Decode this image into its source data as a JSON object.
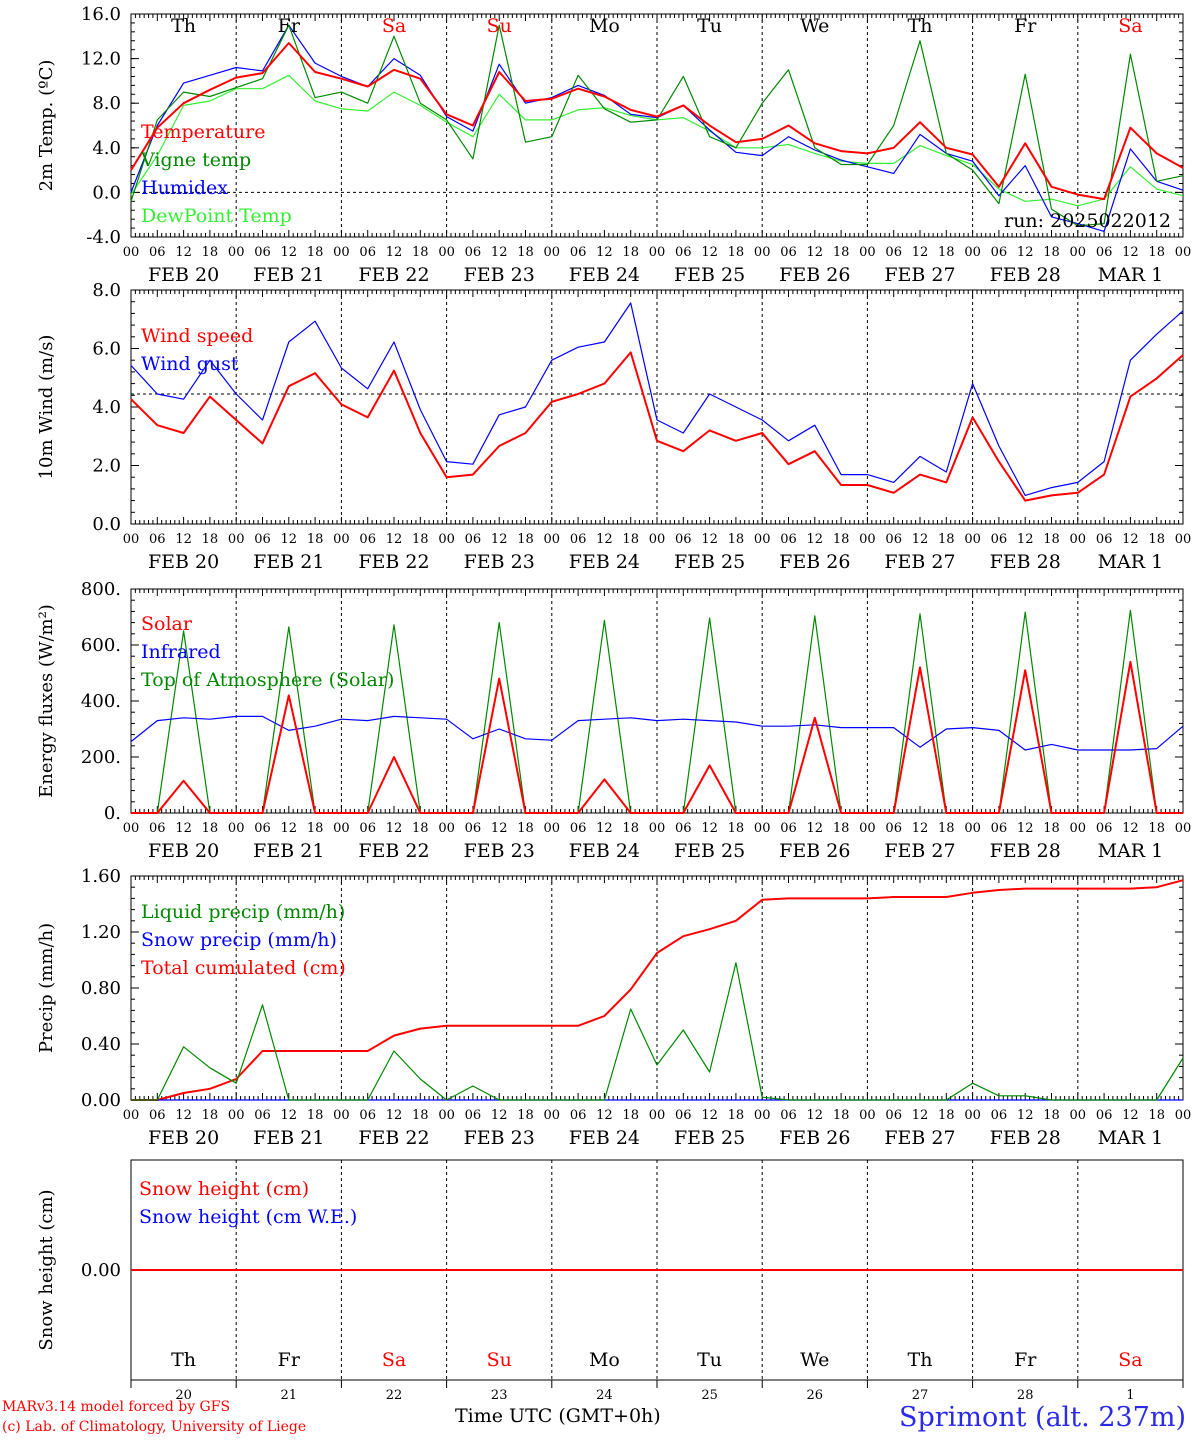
{
  "footer": {
    "credit_line1": "MARv3.14 model forced by GFS",
    "credit_line2": "(c) Lab. of Climatology, University of Liege",
    "time_label": "Time UTC (GMT+0h)",
    "station": "Sprimont (alt. 237m)"
  },
  "colors": {
    "red": "#ff0000",
    "green": "#008800",
    "blue": "#0000ff",
    "lightgreen": "#33ee33",
    "black": "#000000",
    "title_blue": "#2a2ae8"
  },
  "chart_data": [
    {
      "type": "line",
      "ylabel": "2m Temp. (ºC)",
      "ylim": [
        -4,
        16
      ],
      "yticks": [
        "-4.0",
        "0.0",
        "4.0",
        "8.0",
        "12.0",
        "16.0"
      ],
      "refline": 0,
      "run_label": "run: 2025022012",
      "day_labels": [
        "Th",
        "Fr",
        "Sa",
        "Su",
        "Mo",
        "Tu",
        "We",
        "Th",
        "Fr",
        "Sa"
      ],
      "date_labels": [
        "FEB 20",
        "FEB 21",
        "FEB 22",
        "FEB 23",
        "FEB 24",
        "FEB 25",
        "FEB 26",
        "FEB 27",
        "FEB 28",
        "MAR  1"
      ],
      "x_hours_utc": [
        0,
        6,
        12,
        18,
        24,
        30,
        36,
        42,
        48,
        54,
        60,
        66,
        72,
        78,
        84,
        90,
        96,
        102,
        108,
        114,
        120,
        126,
        132,
        138,
        144,
        150,
        156,
        162,
        168,
        174,
        180,
        186,
        192,
        198,
        204,
        210,
        216,
        222,
        228,
        234,
        240
      ],
      "series": [
        {
          "name": "Temperature",
          "color": "red",
          "values": [
            2.0,
            5.8,
            8.0,
            9.2,
            10.3,
            10.7,
            13.4,
            10.8,
            10.2,
            9.5,
            11.0,
            10.2,
            7.0,
            6.0,
            10.8,
            8.2,
            8.4,
            9.3,
            8.6,
            7.4,
            6.8,
            7.8,
            6.0,
            4.5,
            4.8,
            6.0,
            4.4,
            3.7,
            3.5,
            4.0,
            6.3,
            4.0,
            3.4,
            0.5,
            4.4,
            0.5,
            -0.2,
            -0.6,
            5.8,
            3.5,
            2.2
          ]
        },
        {
          "name": "Vigne temp",
          "color": "green",
          "values": [
            -0.8,
            6.5,
            9.0,
            8.6,
            9.4,
            10.2,
            15.0,
            8.5,
            9.0,
            8.0,
            14.0,
            8.0,
            6.5,
            3.0,
            15.0,
            4.5,
            5.0,
            10.5,
            7.5,
            6.3,
            6.5,
            10.4,
            5.0,
            4.0,
            8.0,
            11.0,
            4.0,
            2.5,
            2.5,
            6.0,
            13.6,
            3.5,
            2.0,
            -1.0,
            10.6,
            -1.5,
            -3.0,
            -2.8,
            12.4,
            1.0,
            1.5
          ]
        },
        {
          "name": "Humidex",
          "color": "blue",
          "values": [
            0.0,
            6.0,
            9.8,
            10.5,
            11.2,
            10.9,
            15.0,
            11.6,
            10.4,
            9.5,
            12.0,
            10.5,
            6.8,
            5.5,
            11.5,
            8.0,
            8.5,
            9.6,
            8.7,
            7.0,
            6.7,
            7.8,
            5.6,
            3.6,
            3.3,
            5.0,
            3.8,
            2.9,
            2.3,
            1.7,
            5.2,
            3.5,
            2.8,
            -0.3,
            2.4,
            -2.2,
            -2.8,
            -3.5,
            3.9,
            1.0,
            0.2
          ]
        },
        {
          "name": "DewPoint Temp",
          "color": "lightgreen",
          "values": [
            -0.2,
            3.3,
            7.8,
            8.2,
            9.3,
            9.3,
            10.5,
            8.2,
            7.5,
            7.3,
            9.0,
            7.8,
            6.3,
            5.0,
            8.8,
            6.5,
            6.5,
            7.4,
            7.6,
            6.9,
            6.5,
            6.7,
            5.5,
            4.0,
            4.0,
            4.3,
            3.5,
            2.8,
            2.6,
            2.6,
            4.2,
            3.3,
            2.5,
            0.3,
            -0.8,
            -0.6,
            -1.2,
            -0.6,
            2.3,
            0.3,
            -0.3
          ]
        }
      ]
    },
    {
      "type": "line",
      "ylabel": "10m Wind (m/s)",
      "ylim": [
        0,
        9
      ],
      "yticks": [
        "0.0",
        "2.0",
        "4.0",
        "6.0",
        "8.0"
      ],
      "refline": 5,
      "x_hours_utc": [
        0,
        6,
        12,
        18,
        24,
        30,
        36,
        42,
        48,
        54,
        60,
        66,
        72,
        78,
        84,
        90,
        96,
        102,
        108,
        114,
        120,
        126,
        132,
        138,
        144,
        150,
        156,
        162,
        168,
        174,
        180,
        186,
        192,
        198,
        204,
        210,
        216,
        222,
        228,
        234,
        240
      ],
      "series": [
        {
          "name": "Wind speed",
          "color": "red",
          "values": [
            4.8,
            3.8,
            3.5,
            4.9,
            4.0,
            3.1,
            5.3,
            5.8,
            4.6,
            4.1,
            5.9,
            3.5,
            1.8,
            1.9,
            3.0,
            3.5,
            4.7,
            5.0,
            5.4,
            6.6,
            3.2,
            2.8,
            3.6,
            3.2,
            3.5,
            2.3,
            2.8,
            1.5,
            1.5,
            1.2,
            1.9,
            1.6,
            4.1,
            2.4,
            0.9,
            1.1,
            1.2,
            1.9,
            4.9,
            5.6,
            6.5
          ]
        },
        {
          "name": "Wind gust",
          "color": "blue",
          "values": [
            6.1,
            5.0,
            4.8,
            6.3,
            5.0,
            4.0,
            7.0,
            7.8,
            6.0,
            5.2,
            7.0,
            4.4,
            2.4,
            2.3,
            4.2,
            4.5,
            6.3,
            6.8,
            7.0,
            8.5,
            4.0,
            3.5,
            5.0,
            4.5,
            4.0,
            3.2,
            3.8,
            1.9,
            1.9,
            1.6,
            2.6,
            2.0,
            5.4,
            3.0,
            1.1,
            1.4,
            1.6,
            2.4,
            6.3,
            7.3,
            8.2
          ]
        }
      ]
    },
    {
      "type": "line",
      "ylabel": "Energy fluxes (W/m²)",
      "ylim": [
        0,
        800
      ],
      "yticks": [
        "0.",
        "200.",
        "400.",
        "600.",
        "800."
      ],
      "x_hours_utc": [
        0,
        6,
        12,
        18,
        24,
        30,
        36,
        42,
        48,
        54,
        60,
        66,
        72,
        78,
        84,
        90,
        96,
        102,
        108,
        114,
        120,
        126,
        132,
        138,
        144,
        150,
        156,
        162,
        168,
        174,
        180,
        186,
        192,
        198,
        204,
        210,
        216,
        222,
        228,
        234,
        240
      ],
      "series": [
        {
          "name": "Solar",
          "color": "red",
          "values": [
            0,
            0,
            115,
            0,
            0,
            0,
            420,
            0,
            0,
            0,
            200,
            0,
            0,
            0,
            480,
            0,
            0,
            0,
            120,
            0,
            0,
            0,
            170,
            0,
            0,
            0,
            340,
            0,
            0,
            0,
            520,
            0,
            0,
            0,
            510,
            0,
            0,
            0,
            540,
            0,
            0
          ]
        },
        {
          "name": "Infrared",
          "color": "blue",
          "values": [
            255,
            330,
            340,
            335,
            345,
            345,
            295,
            310,
            335,
            330,
            345,
            340,
            335,
            265,
            300,
            265,
            260,
            330,
            335,
            340,
            330,
            335,
            330,
            325,
            310,
            310,
            315,
            305,
            305,
            305,
            235,
            300,
            305,
            295,
            225,
            245,
            225,
            225,
            225,
            230,
            310
          ]
        },
        {
          "name": "Top of Atmosphere (Solar)",
          "color": "green",
          "values": [
            0,
            0,
            650,
            0,
            0,
            0,
            665,
            0,
            0,
            0,
            672,
            0,
            0,
            0,
            680,
            0,
            0,
            0,
            688,
            0,
            0,
            0,
            696,
            0,
            0,
            0,
            704,
            0,
            0,
            0,
            711,
            0,
            0,
            0,
            717,
            0,
            0,
            0,
            724,
            0,
            0
          ]
        }
      ]
    },
    {
      "type": "line",
      "ylabel": "Precip (mm/h)",
      "ylim": [
        0,
        1.6
      ],
      "yticks": [
        "0.00",
        "0.40",
        "0.80",
        "1.20",
        "1.60"
      ],
      "x_hours_utc": [
        0,
        6,
        12,
        18,
        24,
        30,
        36,
        42,
        48,
        54,
        60,
        66,
        72,
        78,
        84,
        90,
        96,
        102,
        108,
        114,
        120,
        126,
        132,
        138,
        144,
        150,
        156,
        162,
        168,
        174,
        180,
        186,
        192,
        198,
        204,
        210,
        216,
        222,
        228,
        234,
        240
      ],
      "series": [
        {
          "name": "Liquid precip (mm/h)",
          "color": "green",
          "values": [
            0,
            0,
            0.38,
            0.23,
            0.12,
            0.68,
            0,
            0,
            0,
            0,
            0.35,
            0.15,
            0,
            0.1,
            0,
            0,
            0,
            0,
            0,
            0.65,
            0.25,
            0.5,
            0.2,
            0.98,
            0.02,
            0,
            0,
            0,
            0,
            0,
            0,
            0,
            0.12,
            0.03,
            0.03,
            0,
            0,
            0,
            0,
            0,
            0.3
          ]
        },
        {
          "name": "Snow precip (mm/h)",
          "color": "blue",
          "values": [
            0,
            0,
            0,
            0,
            0,
            0,
            0,
            0,
            0,
            0,
            0,
            0,
            0,
            0,
            0,
            0,
            0,
            0,
            0,
            0,
            0,
            0,
            0,
            0,
            0,
            0,
            0,
            0,
            0,
            0,
            0,
            0,
            0,
            0,
            0,
            0,
            0,
            0,
            0,
            0,
            0
          ]
        },
        {
          "name": "Total cumulated (cm)",
          "color": "red",
          "values": [
            0,
            0,
            0.05,
            0.08,
            0.15,
            0.35,
            0.35,
            0.35,
            0.35,
            0.35,
            0.46,
            0.51,
            0.53,
            0.53,
            0.53,
            0.53,
            0.53,
            0.53,
            0.6,
            0.79,
            1.05,
            1.17,
            1.22,
            1.28,
            1.43,
            1.44,
            1.44,
            1.44,
            1.44,
            1.45,
            1.45,
            1.45,
            1.48,
            1.5,
            1.51,
            1.51,
            1.51,
            1.51,
            1.51,
            1.52,
            1.57
          ]
        }
      ]
    },
    {
      "type": "line",
      "ylabel": "Snow height (cm)",
      "yticks": [
        "0.00"
      ],
      "bottom_day_labels": [
        "Th",
        "Fr",
        "Sa",
        "Su",
        "Mo",
        "Tu",
        "We",
        "Th",
        "Fr",
        "Sa"
      ],
      "bottom_date_labels": [
        "20",
        "21",
        "22",
        "23",
        "24",
        "25",
        "26",
        "27",
        "28",
        "1"
      ],
      "x_hours_utc": [
        0,
        240
      ],
      "series": [
        {
          "name": "Snow height (cm)",
          "color": "red",
          "values": [
            0,
            0
          ]
        },
        {
          "name": "Snow height (cm W.E.)",
          "color": "blue",
          "values": [
            0,
            0
          ]
        }
      ]
    }
  ]
}
